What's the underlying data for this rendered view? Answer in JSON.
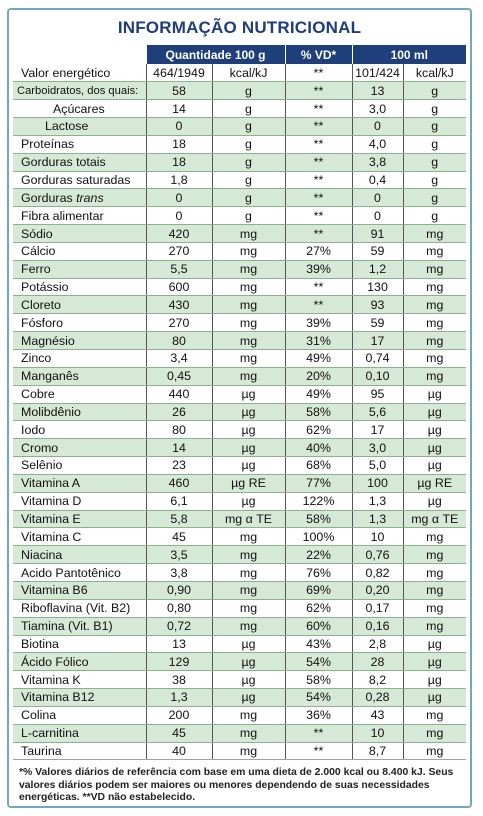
{
  "title": "INFORMAÇÃO NUTRICIONAL",
  "headers": {
    "qty": "Quantidade 100 g",
    "vd": "% VD*",
    "ml": "100 ml"
  },
  "rows": [
    {
      "name": "Valor energético",
      "qv": "464/1949",
      "qu": "kcal/kJ",
      "vd": "**",
      "mv": "101/424",
      "mu": "kcal/kJ"
    },
    {
      "name": "Carboidratos, dos quais:",
      "qv": "58",
      "qu": "g",
      "vd": "**",
      "mv": "13",
      "mu": "g"
    },
    {
      "name": "Açúcares",
      "qv": "14",
      "qu": "g",
      "vd": "**",
      "mv": "3,0",
      "mu": "g"
    },
    {
      "name": "Lactose",
      "qv": "0",
      "qu": "g",
      "vd": "**",
      "mv": "0",
      "mu": "g"
    },
    {
      "name": "Proteínas",
      "qv": "18",
      "qu": "g",
      "vd": "**",
      "mv": "4,0",
      "mu": "g"
    },
    {
      "name": "Gorduras totais",
      "qv": "18",
      "qu": "g",
      "vd": "**",
      "mv": "3,8",
      "mu": "g"
    },
    {
      "name": "Gorduras saturadas",
      "qv": "1,8",
      "qu": "g",
      "vd": "**",
      "mv": "0,4",
      "mu": "g"
    },
    {
      "name": "Gorduras ",
      "name_italic": "trans",
      "qv": "0",
      "qu": "g",
      "vd": "**",
      "mv": "0",
      "mu": "g"
    },
    {
      "name": "Fibra alimentar",
      "qv": "0",
      "qu": "g",
      "vd": "**",
      "mv": "0",
      "mu": "g"
    },
    {
      "name": "Sódio",
      "qv": "420",
      "qu": "mg",
      "vd": "**",
      "mv": "91",
      "mu": "mg"
    },
    {
      "name": "Cálcio",
      "qv": "270",
      "qu": "mg",
      "vd": "27%",
      "mv": "59",
      "mu": "mg"
    },
    {
      "name": "Ferro",
      "qv": "5,5",
      "qu": "mg",
      "vd": "39%",
      "mv": "1,2",
      "mu": "mg"
    },
    {
      "name": "Potássio",
      "qv": "600",
      "qu": "mg",
      "vd": "**",
      "mv": "130",
      "mu": "mg"
    },
    {
      "name": "Cloreto",
      "qv": "430",
      "qu": "mg",
      "vd": "**",
      "mv": "93",
      "mu": "mg"
    },
    {
      "name": "Fósforo",
      "qv": "270",
      "qu": "mg",
      "vd": "39%",
      "mv": "59",
      "mu": "mg"
    },
    {
      "name": "Magnésio",
      "qv": "80",
      "qu": "mg",
      "vd": "31%",
      "mv": "17",
      "mu": "mg"
    },
    {
      "name": "Zinco",
      "qv": "3,4",
      "qu": "mg",
      "vd": "49%",
      "mv": "0,74",
      "mu": "mg"
    },
    {
      "name": "Manganês",
      "qv": "0,45",
      "qu": "mg",
      "vd": "20%",
      "mv": "0,10",
      "mu": "mg"
    },
    {
      "name": "Cobre",
      "qv": "440",
      "qu": "µg",
      "vd": "49%",
      "mv": "95",
      "mu": "µg"
    },
    {
      "name": "Molibdênio",
      "qv": "26",
      "qu": "µg",
      "vd": "58%",
      "mv": "5,6",
      "mu": "µg"
    },
    {
      "name": "Iodo",
      "qv": "80",
      "qu": "µg",
      "vd": "62%",
      "mv": "17",
      "mu": "µg"
    },
    {
      "name": "Cromo",
      "qv": "14",
      "qu": "µg",
      "vd": "40%",
      "mv": "3,0",
      "mu": "µg"
    },
    {
      "name": "Selênio",
      "qv": "23",
      "qu": "µg",
      "vd": "68%",
      "mv": "5,0",
      "mu": "µg"
    },
    {
      "name": "Vitamina A",
      "qv": "460",
      "qu": "µg RE",
      "vd": "77%",
      "mv": "100",
      "mu": "µg RE"
    },
    {
      "name": "Vitamina D",
      "qv": "6,1",
      "qu": "µg",
      "vd": "122%",
      "mv": "1,3",
      "mu": "µg"
    },
    {
      "name": "Vitamina E",
      "qv": "5,8",
      "qu": "mg α TE",
      "vd": "58%",
      "mv": "1,3",
      "mu": "mg α TE"
    },
    {
      "name": "Vitamina C",
      "qv": "45",
      "qu": "mg",
      "vd": "100%",
      "mv": "10",
      "mu": "mg"
    },
    {
      "name": "Niacina",
      "qv": "3,5",
      "qu": "mg",
      "vd": "22%",
      "mv": "0,76",
      "mu": "mg"
    },
    {
      "name": "Acido Pantotênico",
      "qv": "3,8",
      "qu": "mg",
      "vd": "76%",
      "mv": "0,82",
      "mu": "mg"
    },
    {
      "name": "Vitamina B6",
      "qv": "0,90",
      "qu": "mg",
      "vd": "69%",
      "mv": "0,20",
      "mu": "mg"
    },
    {
      "name": "Riboflavina (Vit. B2)",
      "qv": "0,80",
      "qu": "mg",
      "vd": "62%",
      "mv": "0,17",
      "mu": "mg"
    },
    {
      "name": "Tiamina (Vit. B1)",
      "qv": "0,72",
      "qu": "mg",
      "vd": "60%",
      "mv": "0,16",
      "mu": "mg"
    },
    {
      "name": "Biotina",
      "qv": "13",
      "qu": "µg",
      "vd": "43%",
      "mv": "2,8",
      "mu": "µg"
    },
    {
      "name": "Ácido Fólico",
      "qv": "129",
      "qu": "µg",
      "vd": "54%",
      "mv": "28",
      "mu": "µg"
    },
    {
      "name": "Vitamina K",
      "qv": "38",
      "qu": "µg",
      "vd": "58%",
      "mv": "8,2",
      "mu": "µg"
    },
    {
      "name": "Vitamina B12",
      "qv": "1,3",
      "qu": "µg",
      "vd": "54%",
      "mv": "0,28",
      "mu": "µg"
    },
    {
      "name": "Colina",
      "qv": "200",
      "qu": "mg",
      "vd": "36%",
      "mv": "43",
      "mu": "mg"
    },
    {
      "name": "L-carnitina",
      "qv": "45",
      "qu": "mg",
      "vd": "**",
      "mv": "10",
      "mu": "mg"
    },
    {
      "name": "Taurina",
      "qv": "40",
      "qu": "mg",
      "vd": "**",
      "mv": "8,7",
      "mu": "mg"
    }
  ],
  "footnote": "*% Valores diários de referência com base em uma dieta de 2.000 kcal ou 8.400 kJ. Seus valores diários podem ser maiores ou menores dependendo de suas necessidades energéticas. **VD não estabelecido.",
  "colors": {
    "title": "#1f3d7a",
    "header_bg": "#1f3f7a",
    "stripe": "#d6e8d6",
    "border": "#6fa8bf"
  }
}
